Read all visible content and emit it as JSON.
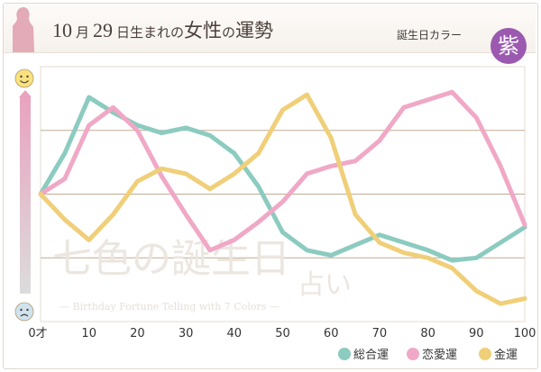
{
  "header": {
    "month": "10",
    "month_unit": "月",
    "day": "29",
    "suffix_1": "日生まれの",
    "suffix_2": "女性",
    "suffix_3": "の",
    "suffix_4": "運勢",
    "color_label": "誕生日カラー",
    "color_badge": "紫",
    "badge_color": "#9b5ab0"
  },
  "watermark": {
    "main": "七色の誕生日",
    "sub": "占い",
    "caption": "— Birthday Fortune Telling with 7 Colors —"
  },
  "chart_data": {
    "type": "line",
    "x": [
      0,
      5,
      10,
      15,
      20,
      25,
      30,
      35,
      40,
      45,
      50,
      55,
      60,
      65,
      70,
      75,
      80,
      85,
      90,
      95,
      100
    ],
    "xlim": [
      0,
      100
    ],
    "ylim": [
      0,
      100
    ],
    "x_tick_labels": [
      "0才",
      "10",
      "20",
      "30",
      "40",
      "50",
      "60",
      "70",
      "80",
      "90",
      "100"
    ],
    "x_tick_values": [
      0,
      10,
      20,
      30,
      40,
      50,
      60,
      70,
      80,
      90,
      100
    ],
    "grid": true,
    "y_icons": {
      "top": "smiling-face-icon",
      "bottom": "sad-face-icon"
    },
    "series": [
      {
        "name": "総合運",
        "color": "#8ccbc0",
        "values": [
          50,
          66,
          88,
          82,
          77,
          74,
          76,
          73,
          66,
          53,
          35,
          28,
          26,
          30,
          34,
          31,
          28,
          24,
          25,
          31,
          37
        ]
      },
      {
        "name": "恋愛運",
        "color": "#f0a8c6",
        "values": [
          50,
          56,
          77,
          84,
          75,
          57,
          42,
          28,
          32,
          39,
          47,
          58,
          61,
          63,
          71,
          84,
          87,
          90,
          80,
          61,
          38
        ]
      },
      {
        "name": "金運",
        "color": "#f0cf79",
        "values": [
          50,
          40,
          32,
          42,
          55,
          60,
          58,
          52,
          58,
          66,
          83,
          89,
          72,
          42,
          31,
          27,
          25,
          21,
          12,
          7,
          9
        ]
      }
    ]
  }
}
